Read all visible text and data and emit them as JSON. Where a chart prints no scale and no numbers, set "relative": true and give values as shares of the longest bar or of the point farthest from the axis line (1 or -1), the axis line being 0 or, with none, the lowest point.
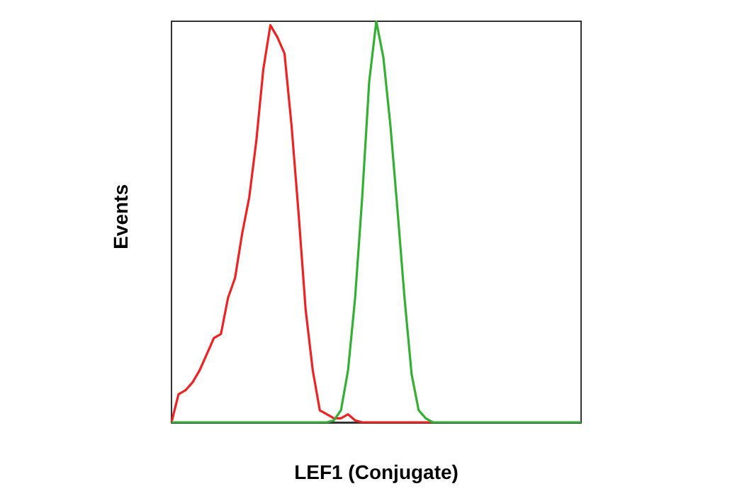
{
  "chart_data": {
    "type": "line",
    "xlabel": "LEF1 (Conjugate)",
    "ylabel": "Events",
    "relative": true,
    "categories": [
      null,
      null,
      null,
      null,
      null,
      null,
      null,
      null,
      null,
      null,
      null,
      null,
      null,
      null,
      null,
      null,
      null,
      null,
      null,
      null,
      null,
      null,
      null,
      null,
      null,
      null,
      null,
      null,
      null,
      null,
      null,
      null,
      null,
      null,
      null,
      null,
      null,
      null,
      null,
      null,
      null,
      null,
      null,
      null,
      null,
      null,
      null,
      null,
      null,
      null,
      null,
      null,
      null,
      null,
      null,
      null,
      null,
      null,
      null
    ],
    "series": [
      {
        "color": "#ee2222",
        "values": [
          0,
          0.07,
          0.08,
          0.1,
          0.13,
          0.17,
          0.21,
          0.22,
          0.31,
          0.36,
          0.47,
          0.56,
          0.7,
          0.88,
          0.99,
          0.96,
          0.92,
          0.74,
          0.52,
          0.28,
          0.13,
          0.03,
          0.02,
          0.01,
          0.01,
          0.02,
          0.005,
          0,
          0,
          0,
          0,
          0,
          0,
          0,
          0,
          0,
          0,
          0,
          null,
          null,
          null,
          null,
          null,
          null,
          null,
          null,
          null,
          null,
          null,
          null,
          null,
          null,
          null,
          null,
          null,
          null,
          null,
          null,
          null
        ]
      },
      {
        "color": "#33b033",
        "values": [
          0,
          0,
          0,
          0,
          0,
          0,
          0,
          0,
          0,
          0,
          0,
          0,
          0,
          0,
          0,
          0,
          0,
          0,
          0,
          0,
          0,
          0,
          0,
          0.005,
          0.03,
          0.13,
          0.31,
          0.56,
          0.85,
          1,
          0.91,
          0.74,
          0.53,
          0.31,
          0.12,
          0.03,
          0.01,
          0,
          0,
          0,
          0,
          0,
          0,
          0,
          0,
          0,
          0,
          0,
          0,
          0,
          0,
          0,
          0,
          0,
          0,
          0,
          0,
          0,
          0
        ]
      }
    ],
    "grid": false
  }
}
